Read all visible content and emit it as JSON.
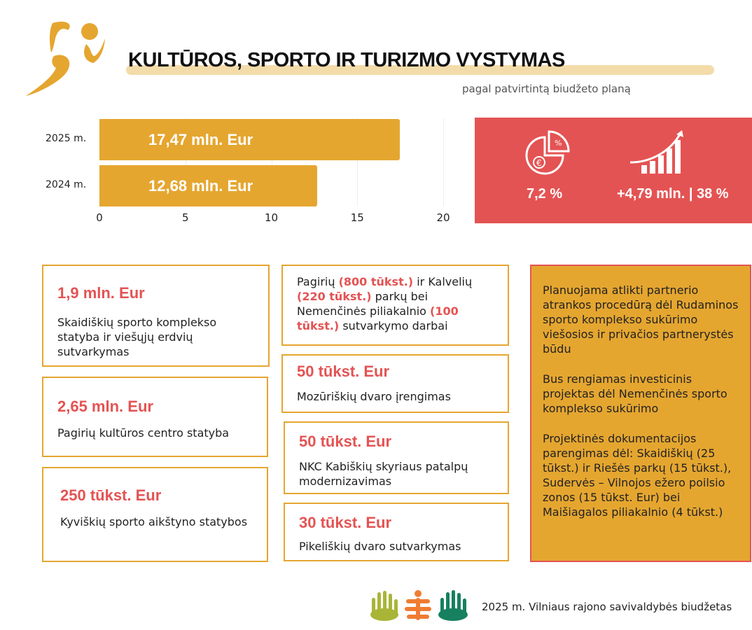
{
  "header": {
    "title": "KULTŪROS, SPORTO IR TURIZMO VYSTYMAS",
    "subtitle": "pagal patvirtintą biudžeto planą"
  },
  "chart_data": {
    "type": "bar",
    "orientation": "horizontal",
    "categories": [
      "2025 m.",
      "2024 m."
    ],
    "values": [
      17.47,
      12.68
    ],
    "data_labels": [
      "17,47 mln. Eur",
      "12,68 mln. Eur"
    ],
    "xlim": [
      0,
      20
    ],
    "xticks": [
      "0",
      "5",
      "10",
      "15",
      "20"
    ],
    "unit": "mln. Eur",
    "color": "#e5a630"
  },
  "kpi": {
    "share": "7,2 %",
    "growth": "+4,79 mln. | 38 %",
    "color": "#e45353"
  },
  "projects_col1": [
    {
      "amount": "1,9 mln. Eur",
      "desc": "Skaidiškių sporto komplekso statyba ir viešųjų erdvių sutvarkymas"
    },
    {
      "amount": "2,65 mln. Eur",
      "desc": "Pagirių kultūros centro statyba"
    },
    {
      "amount": "250 tūkst. Eur",
      "desc": "Kyviškių sporto aikštyno statybos"
    }
  ],
  "parks": {
    "t1": "Pagirių ",
    "h1": "(800 tūkst.)",
    "t2": " ir Kalvelių ",
    "h2": "(220 tūkst.)",
    "t3": " parkų bei Nemenčinės piliakalnio ",
    "h3": "(100 tūkst.)",
    "t4": " sutvarkymo darbai"
  },
  "projects_col2": [
    {
      "amount": "50 tūkst. Eur",
      "desc": "Mozūriškių dvaro įrengimas"
    },
    {
      "amount": "50 tūkst. Eur",
      "desc": "NKC Kabiškių skyriaus patalpų modernizavimas"
    },
    {
      "amount": "30 tūkst. Eur",
      "desc": "Pikeliškių dvaro sutvarkymas"
    }
  ],
  "side": [
    "Planuojama atlikti partnerio atrankos procedūrą dėl Rudaminos sporto komplekso sukūrimo viešosios ir privačios partnerystės būdu",
    "Bus rengiamas investicinis projektas dėl Nemenčinės sporto komplekso sukūrimo",
    "Projektinės dokumentacijos parengimas dėl: Skaidiškių (25 tūkst.) ir Riešės parkų (15 tūkst.), Sudervės – Vilnojos ežero poilsio zonos (15 tūkst. Eur) bei Maišiagalos piliakalnio (4 tūkst.)"
  ],
  "footer": "2025 m. Vilniaus rajono savivaldybės biudžetas"
}
